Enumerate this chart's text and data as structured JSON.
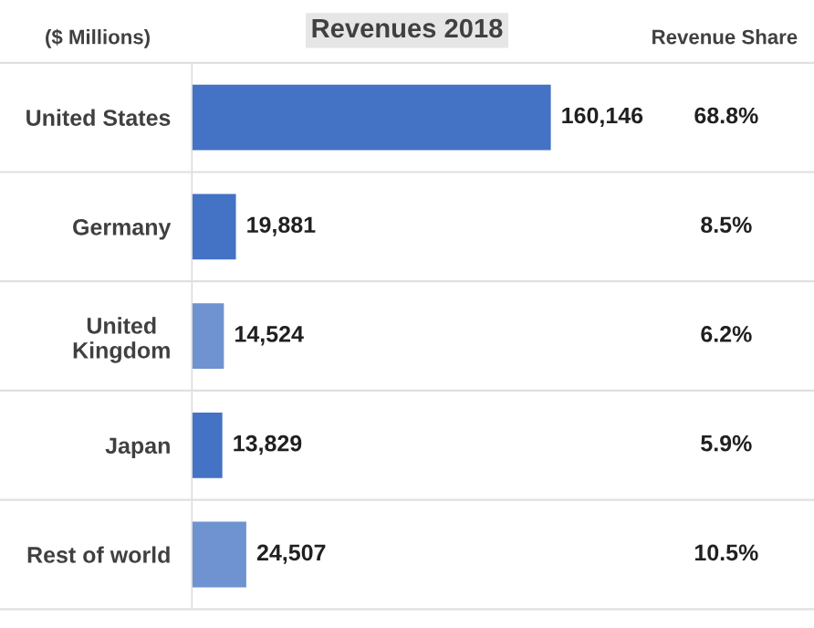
{
  "chart_data": {
    "type": "bar",
    "orientation": "horizontal",
    "title": "Revenues 2018",
    "categories": [
      "United States",
      "Germany",
      "United\nKingdom",
      "Japan",
      "Rest of world"
    ],
    "values": [
      160146,
      19881,
      14524,
      13829,
      24507
    ],
    "colors": [
      "#4472c4",
      "#4472c4",
      "#6f93d0",
      "#4472c4",
      "#6f93d0"
    ],
    "value_labels": [
      "160,146",
      "19,881",
      "14,524",
      "13,829",
      "24,507"
    ],
    "tick_labels": "y",
    "grid": false,
    "legend": false,
    "annotations": [
      "($ Millions)",
      "Revenue Share",
      "68.8%",
      "8.5%",
      "6.2%",
      "5.9%",
      "10.5%"
    ]
  }
}
